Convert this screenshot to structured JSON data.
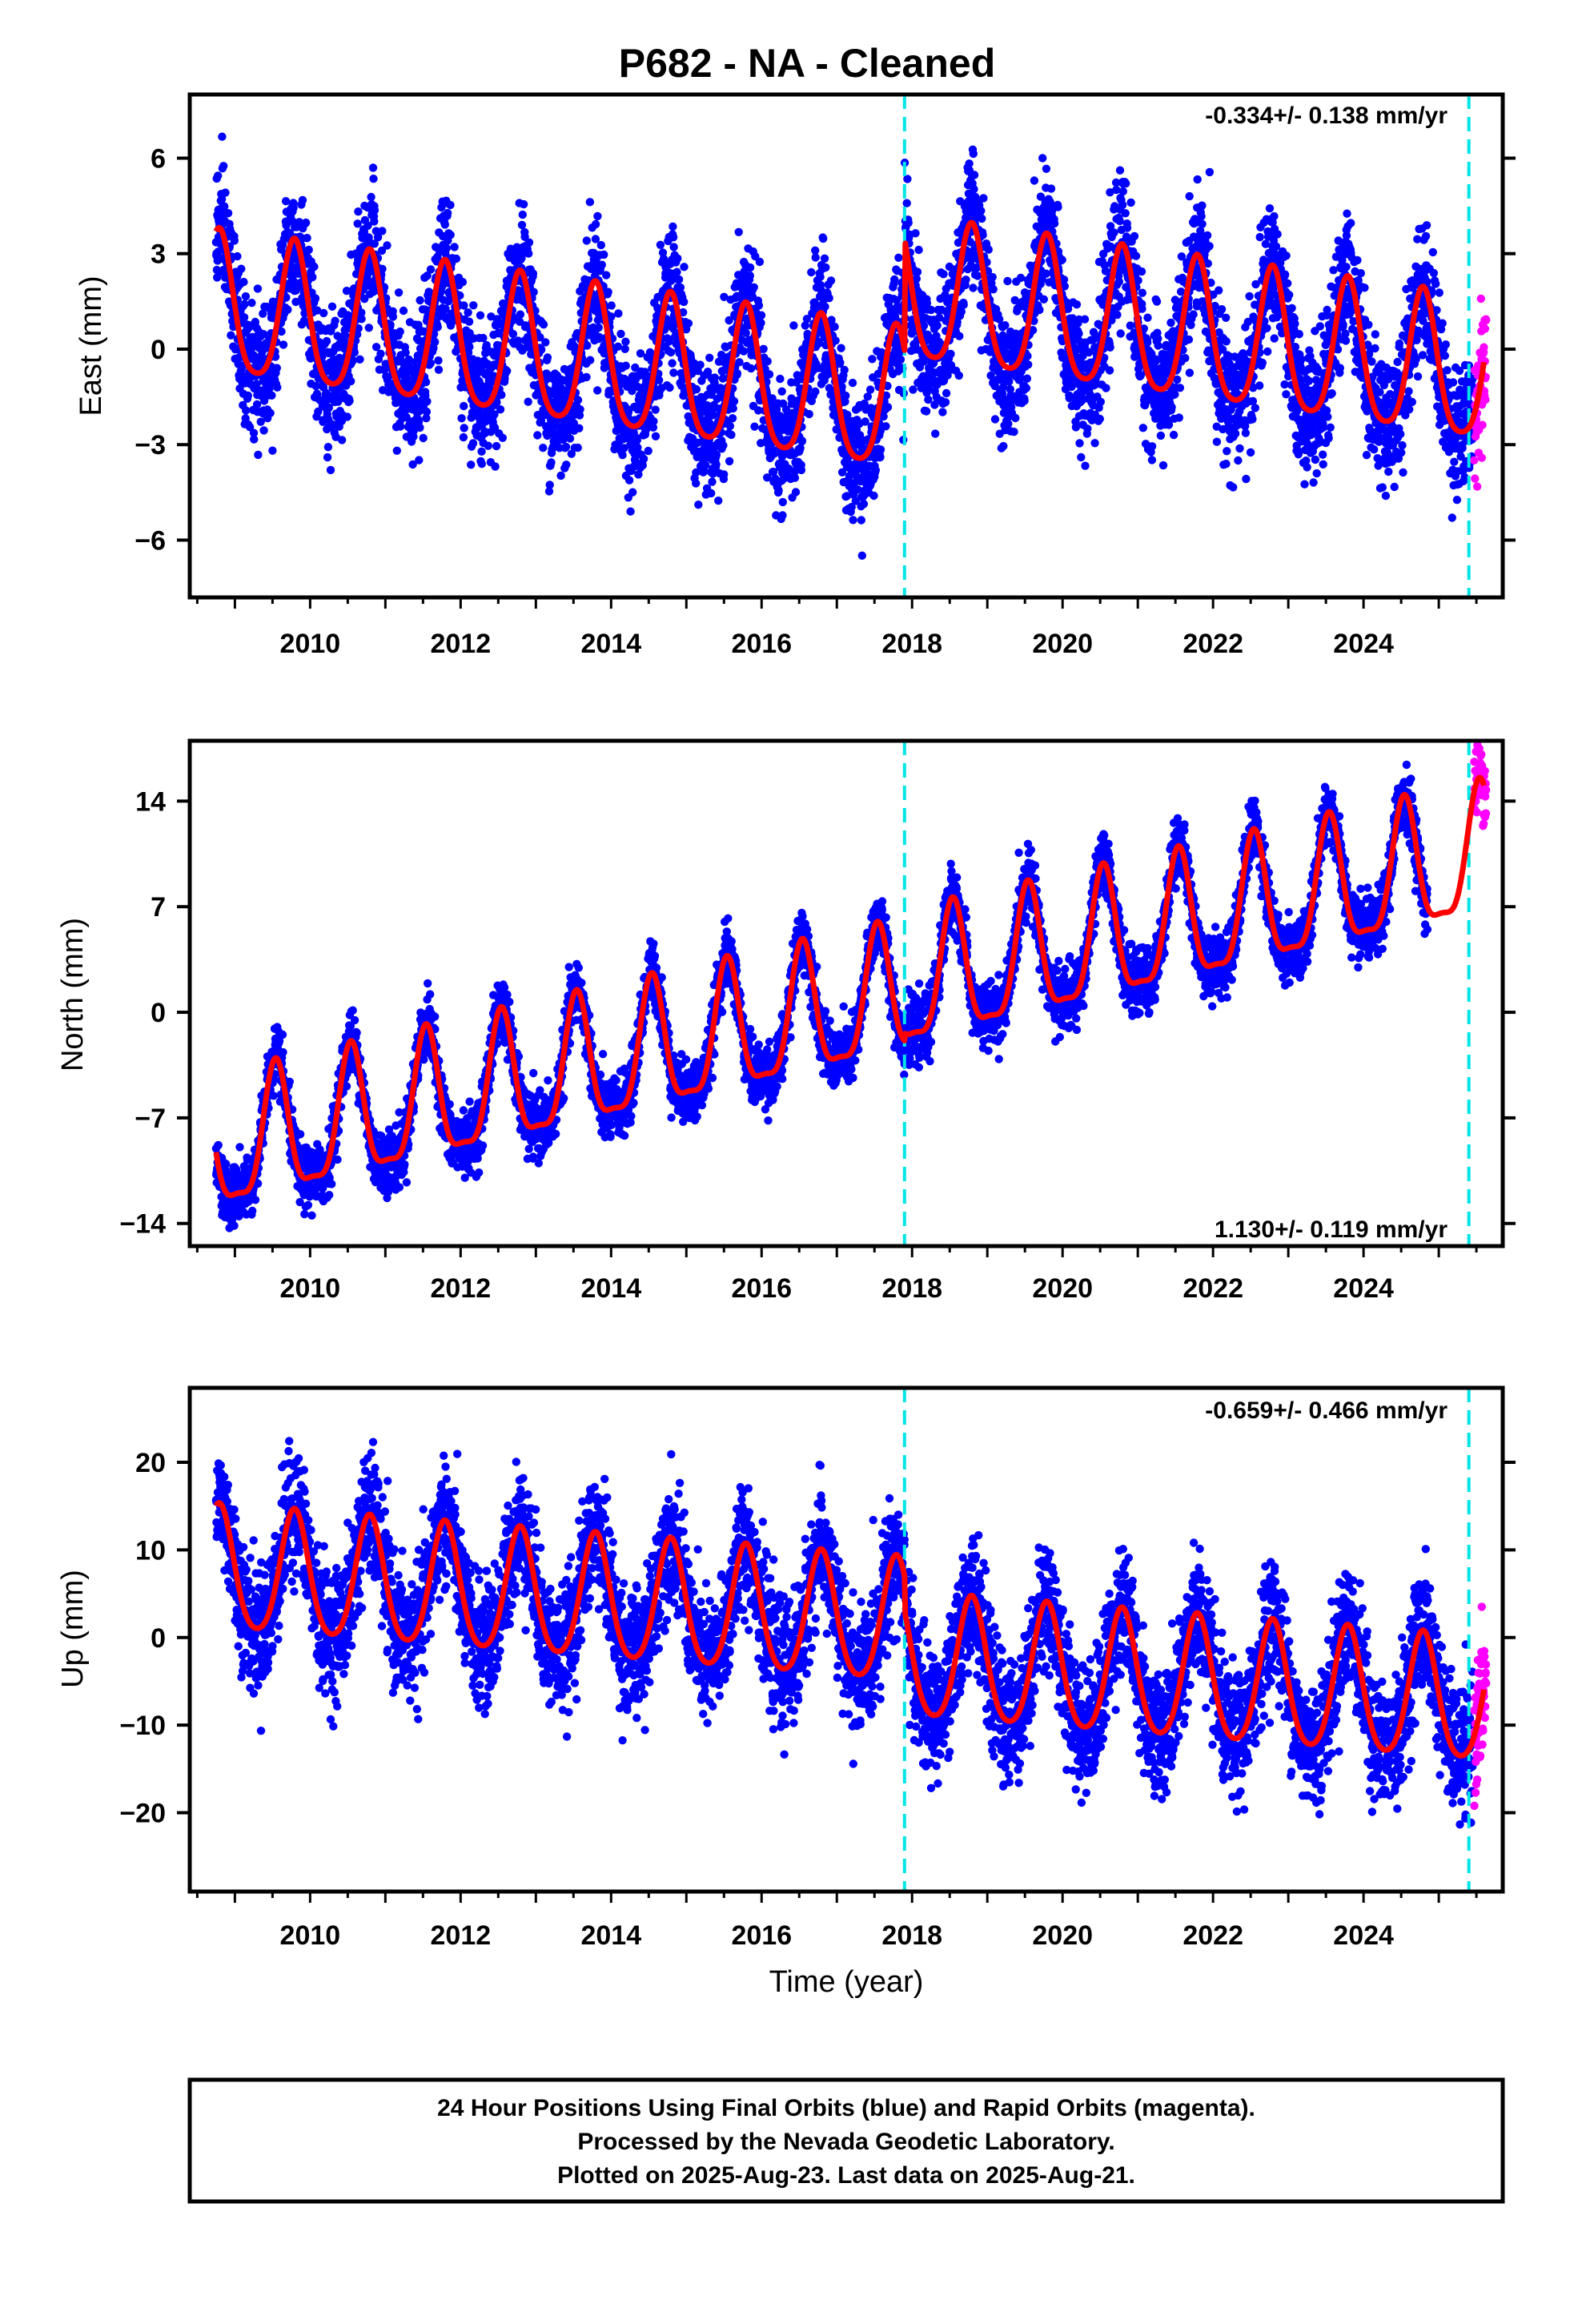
{
  "title": "P682  - NA - Cleaned",
  "colors": {
    "final_points": "#0000ff",
    "rapid_points": "#ff00ff",
    "model": "#ff0000",
    "event_line": "#00e5e5",
    "frame": "#000000"
  },
  "x_axis": {
    "label": "Time (year)",
    "ticks": [
      "2010",
      "2012",
      "2014",
      "2016",
      "2018",
      "2020",
      "2022",
      "2024"
    ]
  },
  "event_lines": [
    2017.9,
    2025.4
  ],
  "footer": {
    "line1": "24 Hour Positions Using Final Orbits (blue) and Rapid Orbits (magenta).",
    "line2": "Processed by the Nevada Geodetic Laboratory.",
    "line3": "Plotted on 2025-Aug-23. Last data on 2025-Aug-21."
  },
  "chart_data": [
    {
      "type": "scatter",
      "component": "East",
      "ylabel": "East (mm)",
      "xlim": [
        2008.4,
        2025.85
      ],
      "ylim": [
        -7.8,
        8.0
      ],
      "yticks": [
        6,
        3,
        0,
        -3,
        -6
      ],
      "ytick_labels": [
        "6",
        "3",
        "0",
        "−3",
        "−6"
      ],
      "rate_label": "-0.334+/- 0.138 mm/yr",
      "rate_position": "top-right",
      "trend_mm_per_yr": -0.334,
      "annual_amplitude_mm": 2.2,
      "annual_peak_month": 10,
      "semiannual_amplitude_mm": 0.4,
      "offset_2018_mm": 3.5,
      "scatter_sigma_mm": 1.0,
      "data_range": [
        2008.75,
        2025.45
      ],
      "rapid_range": [
        2025.47,
        2025.63
      ],
      "model_range": [
        2008.75,
        2025.6
      ],
      "series": [
        {
          "name": "Final Orbits (blue)",
          "color": "#0000ff"
        },
        {
          "name": "Rapid Orbits (magenta)",
          "color": "#ff00ff"
        }
      ]
    },
    {
      "type": "scatter",
      "component": "North",
      "ylabel": "North (mm)",
      "xlim": [
        2008.4,
        2025.85
      ],
      "ylim": [
        -15.5,
        18.0
      ],
      "yticks": [
        14,
        7,
        0,
        -7,
        -14
      ],
      "ytick_labels": [
        "14",
        "7",
        "0",
        "−7",
        "−14"
      ],
      "rate_label": "1.130+/- 0.119 mm/yr",
      "rate_position": "bottom-right",
      "trend_mm_per_yr": 1.13,
      "annual_amplitude_mm": 4.2,
      "annual_peak_month": 7,
      "semiannual_amplitude_mm": 1.2,
      "offset_2018_mm": 0.5,
      "scatter_sigma_mm": 1.0,
      "data_range": [
        2008.75,
        2024.85
      ],
      "rapid_range": [
        2025.47,
        2025.63
      ],
      "model_range": [
        2008.75,
        2025.6
      ],
      "series": [
        {
          "name": "Final Orbits (blue)",
          "color": "#0000ff"
        },
        {
          "name": "Rapid Orbits (magenta)",
          "color": "#ff00ff"
        }
      ]
    },
    {
      "type": "scatter",
      "component": "Up",
      "ylabel": "Up (mm)",
      "xlim": [
        2008.4,
        2025.85
      ],
      "ylim": [
        -29.0,
        28.5
      ],
      "yticks": [
        20,
        10,
        0,
        -10,
        -20
      ],
      "ytick_labels": [
        "20",
        "10",
        "0",
        "−10",
        "−20"
      ],
      "rate_label": "-0.659+/- 0.466 mm/yr",
      "rate_position": "top-right",
      "trend_mm_per_yr": -0.659,
      "annual_amplitude_mm": 7.0,
      "annual_peak_month": 10,
      "semiannual_amplitude_mm": 1.0,
      "offset_2018_mm": -4.0,
      "scatter_sigma_mm": 3.5,
      "data_range": [
        2008.75,
        2025.45
      ],
      "rapid_range": [
        2025.47,
        2025.63
      ],
      "model_range": [
        2008.75,
        2025.6
      ],
      "series": [
        {
          "name": "Final Orbits (blue)",
          "color": "#0000ff"
        },
        {
          "name": "Rapid Orbits (magenta)",
          "color": "#ff00ff"
        }
      ]
    }
  ]
}
